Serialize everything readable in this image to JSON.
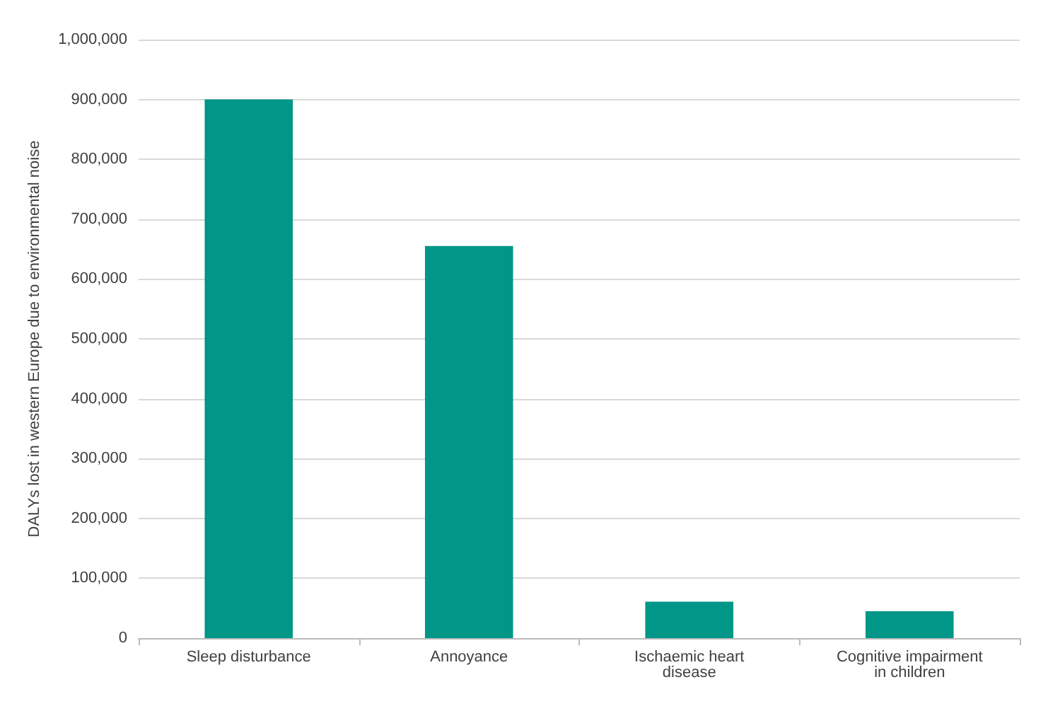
{
  "chart_data": {
    "type": "bar",
    "ylabel": "DALYs lost in western Europe due to environmental noise",
    "categories": [
      "Sleep disturbance",
      "Annoyance",
      "Ischaemic heart disease",
      "Cognitive impairment in children"
    ],
    "values": [
      900000,
      655000,
      61000,
      45000
    ],
    "color": "#009688",
    "ylim": [
      0,
      1000000
    ],
    "yticks": [
      0,
      {
        "value": 100000,
        "label": "100,000"
      },
      {
        "value": 200000,
        "label": "200,000"
      },
      {
        "value": 300000,
        "label": "300,000"
      },
      {
        "value": 400000,
        "label": "400,000"
      },
      {
        "value": 500000,
        "label": "500,000"
      },
      {
        "value": 600000,
        "label": "600,000"
      },
      {
        "value": 700000,
        "label": "700,000"
      },
      {
        "value": 800000,
        "label": "800,000"
      },
      {
        "value": 900000,
        "label": "900,000"
      },
      {
        "value": 1000000,
        "label": "1,000,000"
      }
    ],
    "grid": "y"
  }
}
